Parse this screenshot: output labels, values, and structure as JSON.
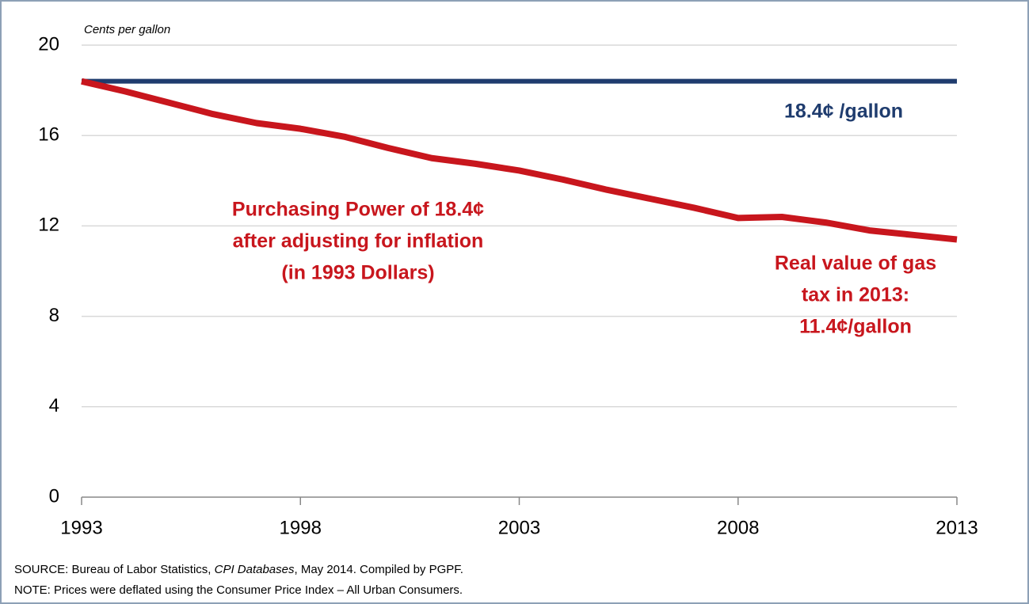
{
  "chart_data": {
    "type": "line",
    "y_axis_label": "Cents per gallon",
    "x": [
      1993,
      1994,
      1995,
      1996,
      1997,
      1998,
      1999,
      2000,
      2001,
      2002,
      2003,
      2004,
      2005,
      2006,
      2007,
      2008,
      2009,
      2010,
      2011,
      2012,
      2013
    ],
    "series": [
      {
        "name": "18.4¢ /gallon",
        "color": "#1f3c6e",
        "values": [
          18.4,
          18.4,
          18.4,
          18.4,
          18.4,
          18.4,
          18.4,
          18.4,
          18.4,
          18.4,
          18.4,
          18.4,
          18.4,
          18.4,
          18.4,
          18.4,
          18.4,
          18.4,
          18.4,
          18.4,
          18.4
        ]
      },
      {
        "name": "Purchasing Power of 18.4¢ after adjusting for inflation (in 1993 Dollars)",
        "color": "#c8161d",
        "values": [
          18.4,
          17.95,
          17.45,
          16.95,
          16.55,
          16.3,
          15.95,
          15.45,
          15.0,
          14.75,
          14.45,
          14.05,
          13.6,
          13.2,
          12.8,
          12.35,
          12.4,
          12.15,
          11.8,
          11.6,
          11.4
        ]
      }
    ],
    "series_labels": [
      [
        "18.4¢ /gallon"
      ],
      [
        "Purchasing Power of 18.4¢",
        "after adjusting for inflation",
        "(in 1993 Dollars)"
      ]
    ],
    "annotation": [
      "Real value of gas",
      "tax in 2013:",
      "11.4¢/gallon"
    ],
    "xlim": [
      1993,
      2013
    ],
    "xticks": [
      1993,
      1998,
      2003,
      2008,
      2013
    ],
    "ylim": [
      0,
      20
    ],
    "yticks": [
      0,
      4,
      8,
      12,
      16,
      20
    ],
    "grid": true,
    "source": [
      "SOURCE: Bureau of Labor Statistics, ",
      "CPI Databases",
      ", May 2014. Compiled by PGPF."
    ],
    "note": "NOTE: Prices were deflated using the Consumer Price Index – All Urban Consumers."
  }
}
